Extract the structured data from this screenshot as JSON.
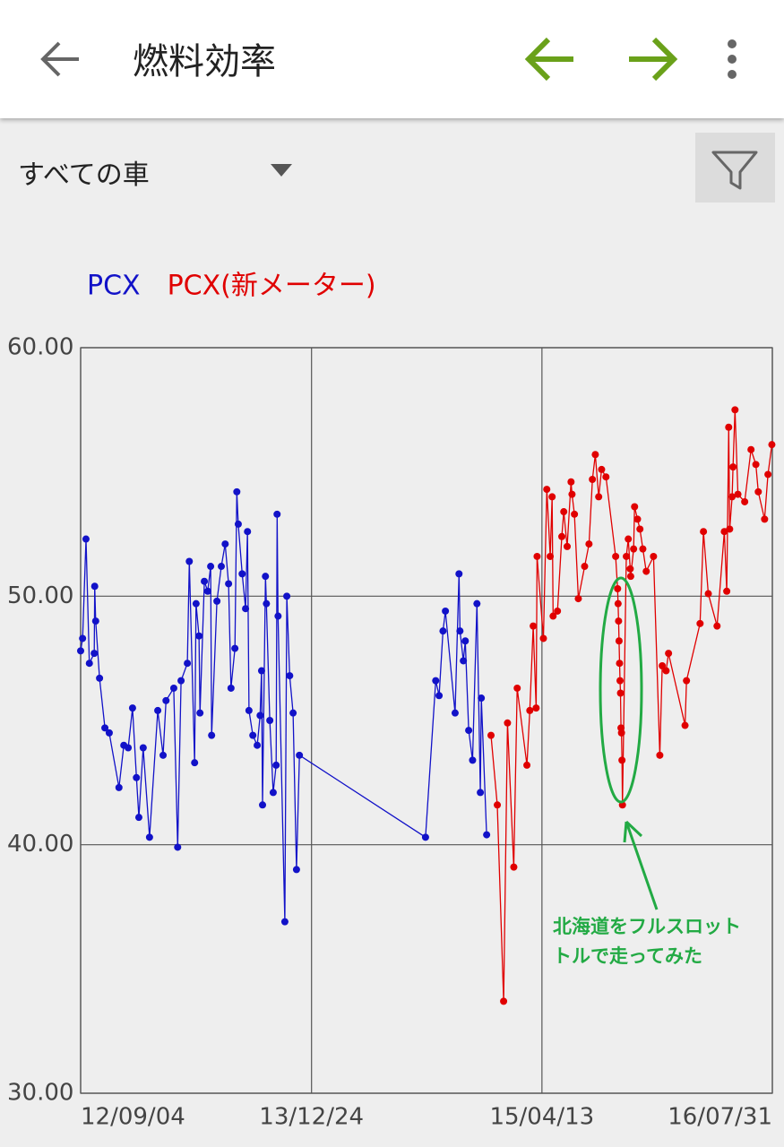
{
  "app_bar": {
    "title": "燃料効率"
  },
  "filter_bar": {
    "selected": "すべての車"
  },
  "chart_data": {
    "type": "line",
    "xlim": [
      "2012-09-04",
      "2016-07-31"
    ],
    "xticks": [
      {
        "value": "2012-09-04",
        "label": "12/09/04"
      },
      {
        "value": "2013-12-24",
        "label": "13/12/24"
      },
      {
        "value": "2015-04-13",
        "label": "15/04/13"
      },
      {
        "value": "2016-07-31",
        "label": "16/07/31"
      }
    ],
    "ylim": [
      30,
      60
    ],
    "yticks": [
      {
        "value": 30,
        "label": "30.00"
      },
      {
        "value": 40,
        "label": "40.00"
      },
      {
        "value": 50,
        "label": "50.00"
      },
      {
        "value": 60,
        "label": "60.00"
      }
    ],
    "grid": true,
    "legend": "top-left",
    "series": [
      {
        "name": "PCX",
        "color": "#1212c8",
        "x": [
          "2012-09-04",
          "2012-09-08",
          "2012-09-15",
          "2012-09-22",
          "2012-10-02",
          "2012-10-03",
          "2012-10-05",
          "2012-10-13",
          "2012-10-24",
          "2012-11-02",
          "2012-11-22",
          "2012-12-02",
          "2012-12-11",
          "2012-12-20",
          "2012-12-28",
          "2013-01-02",
          "2013-01-11",
          "2013-01-24",
          "2013-02-10",
          "2013-02-21",
          "2013-02-27",
          "2013-03-15",
          "2013-03-23",
          "2013-03-30",
          "2013-04-12",
          "2013-04-16",
          "2013-04-27",
          "2013-04-30",
          "2013-05-06",
          "2013-05-08",
          "2013-05-17",
          "2013-05-24",
          "2013-05-30",
          "2013-06-01",
          "2013-06-12",
          "2013-06-21",
          "2013-06-29",
          "2013-07-06",
          "2013-07-11",
          "2013-07-19",
          "2013-07-23",
          "2013-07-26",
          "2013-08-03",
          "2013-08-10",
          "2013-08-14",
          "2013-08-17",
          "2013-08-25",
          "2013-09-03",
          "2013-09-09",
          "2013-09-12",
          "2013-09-14",
          "2013-09-20",
          "2013-09-22",
          "2013-09-29",
          "2013-10-06",
          "2013-10-12",
          "2013-10-14",
          "2013-10-16",
          "2013-10-30",
          "2013-11-03",
          "2013-11-09",
          "2013-11-16",
          "2013-11-23",
          "2013-11-29",
          "2014-08-16",
          "2014-09-06",
          "2014-09-13",
          "2014-09-21",
          "2014-09-26",
          "2014-10-16",
          "2014-10-24",
          "2014-10-26",
          "2014-11-02",
          "2014-11-06",
          "2014-11-13",
          "2014-11-21",
          "2014-11-30",
          "2014-12-07",
          "2014-12-09",
          "2014-12-20"
        ],
        "values": [
          47.8,
          48.3,
          52.3,
          47.3,
          47.7,
          50.4,
          49.0,
          46.7,
          44.7,
          44.5,
          42.3,
          44.0,
          43.9,
          45.5,
          42.7,
          41.1,
          43.9,
          40.3,
          45.4,
          43.6,
          45.8,
          46.3,
          39.9,
          46.6,
          47.3,
          51.4,
          43.3,
          49.7,
          48.4,
          45.3,
          50.6,
          50.2,
          51.2,
          44.4,
          49.8,
          51.2,
          52.1,
          50.5,
          46.3,
          47.9,
          54.2,
          52.9,
          50.9,
          49.5,
          52.6,
          45.4,
          44.4,
          44.0,
          45.2,
          47.0,
          41.6,
          50.8,
          49.7,
          45.0,
          42.1,
          43.2,
          53.3,
          49.2,
          36.9,
          50.0,
          46.8,
          45.3,
          39.0,
          43.6,
          40.3,
          46.6,
          46.0,
          48.6,
          49.4,
          45.3,
          50.9,
          48.6,
          47.4,
          48.2,
          44.6,
          43.4,
          49.7,
          42.1,
          45.9,
          40.4
        ]
      },
      {
        "name": "PCX(新メーター)",
        "color": "#e00000",
        "x": [
          "2014-12-29",
          "2015-01-11",
          "2015-01-24",
          "2015-02-01",
          "2015-02-14",
          "2015-02-21",
          "2015-03-13",
          "2015-03-19",
          "2015-03-26",
          "2015-04-01",
          "2015-04-03",
          "2015-04-16",
          "2015-04-23",
          "2015-04-30",
          "2015-05-04",
          "2015-05-06",
          "2015-05-15",
          "2015-05-24",
          "2015-05-28",
          "2015-06-04",
          "2015-06-12",
          "2015-06-14",
          "2015-06-19",
          "2015-06-27",
          "2015-07-10",
          "2015-07-19",
          "2015-07-26",
          "2015-08-01",
          "2015-08-08",
          "2015-08-14",
          "2015-08-23",
          "2015-09-12",
          "2015-09-16",
          "2015-09-17",
          "2015-09-18",
          "2015-09-19",
          "2015-09-20",
          "2015-09-21",
          "2015-09-22",
          "2015-09-23",
          "2015-09-24",
          "2015-09-25",
          "2015-09-26",
          "2015-10-04",
          "2015-10-08",
          "2015-10-12",
          "2015-10-13",
          "2015-10-19",
          "2015-10-21",
          "2015-10-27",
          "2015-11-01",
          "2015-11-07",
          "2015-11-14",
          "2015-11-29",
          "2015-12-12",
          "2015-12-17",
          "2015-12-25",
          "2015-12-30",
          "2016-02-02",
          "2016-02-05",
          "2016-03-04",
          "2016-03-11",
          "2016-03-21",
          "2016-04-08",
          "2016-04-23",
          "2016-04-28",
          "2016-05-02",
          "2016-05-04",
          "2016-05-09",
          "2016-05-11",
          "2016-05-15",
          "2016-05-21",
          "2016-06-04",
          "2016-06-17",
          "2016-06-27",
          "2016-07-02",
          "2016-07-15",
          "2016-07-22",
          "2016-07-30"
        ],
        "values": [
          44.4,
          41.6,
          33.7,
          44.9,
          39.1,
          46.3,
          43.2,
          45.4,
          48.8,
          45.5,
          51.6,
          48.3,
          54.3,
          51.6,
          54.0,
          49.2,
          49.4,
          52.4,
          53.4,
          52.0,
          54.6,
          54.1,
          53.3,
          49.9,
          51.2,
          52.1,
          54.7,
          55.7,
          54.0,
          55.1,
          54.8,
          51.6,
          50.3,
          49.7,
          49.0,
          48.2,
          47.3,
          46.6,
          46.1,
          44.7,
          44.5,
          43.4,
          41.6,
          51.6,
          52.3,
          51.1,
          50.8,
          51.9,
          53.6,
          53.1,
          52.7,
          51.9,
          51.0,
          51.6,
          43.6,
          47.2,
          47.0,
          47.7,
          44.8,
          46.6,
          48.9,
          52.6,
          50.1,
          48.8,
          52.6,
          50.2,
          56.8,
          52.7,
          54.0,
          55.2,
          57.5,
          54.1,
          53.8,
          55.9,
          55.3,
          54.2,
          53.1,
          54.9,
          56.1
        ]
      }
    ],
    "annotation": {
      "lines": [
        "北海道をフルスロット",
        "トルで走ってみた"
      ],
      "color": "#22aa44"
    }
  }
}
